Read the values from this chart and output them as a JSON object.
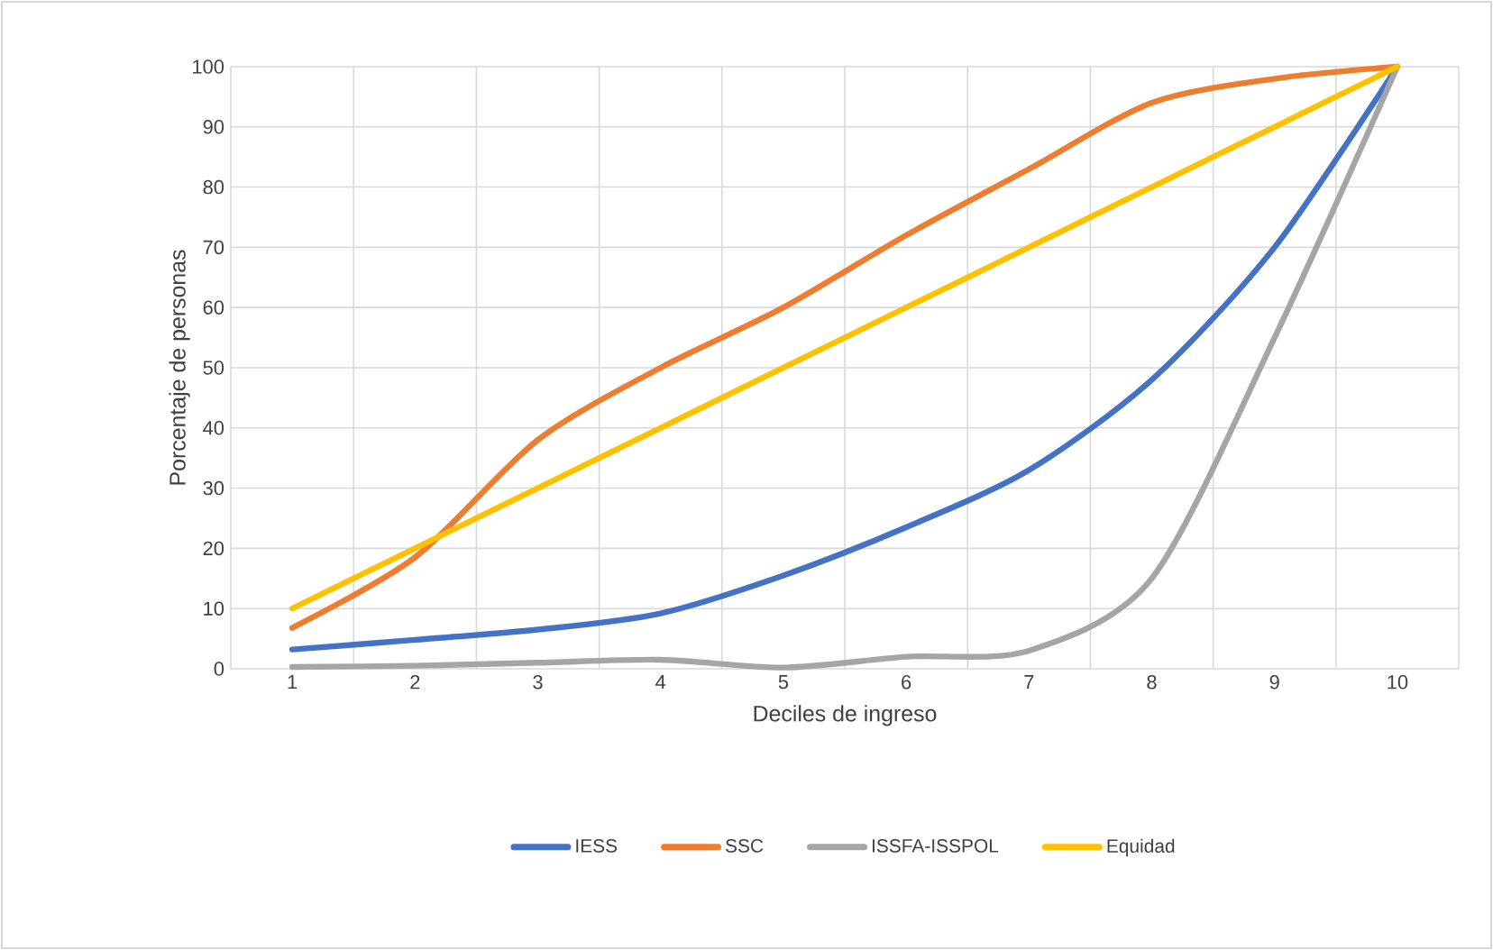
{
  "chart_data": {
    "type": "line",
    "xlabel": "Deciles de ingreso",
    "ylabel": "Porcentaje de personas",
    "categories": [
      "1",
      "2",
      "3",
      "4",
      "5",
      "6",
      "7",
      "8",
      "9",
      "10"
    ],
    "series": [
      {
        "name": "IESS",
        "color": "#4472c4",
        "values": [
          3.2,
          4.8,
          6.5,
          9.2,
          15.5,
          23.5,
          33,
          48,
          70,
          100
        ]
      },
      {
        "name": "SSC",
        "color": "#ed7d31",
        "values": [
          6.8,
          18.5,
          38,
          50,
          60,
          72,
          83,
          94,
          98,
          100
        ]
      },
      {
        "name": "ISSFA-ISSPOL",
        "color": "#a5a5a5",
        "values": [
          0.3,
          0.5,
          1,
          1.5,
          0.2,
          2,
          3,
          15,
          55,
          100
        ]
      },
      {
        "name": "Equidad",
        "color": "#ffc000",
        "values": [
          10,
          20,
          30,
          40,
          50,
          60,
          70,
          80,
          90,
          100
        ]
      }
    ],
    "ylim": [
      0,
      100
    ],
    "yticks": [
      0,
      10,
      20,
      30,
      40,
      50,
      60,
      70,
      80,
      90,
      100
    ],
    "grid": true,
    "legend": "bottom",
    "marker": "none",
    "line_style": "solid"
  }
}
